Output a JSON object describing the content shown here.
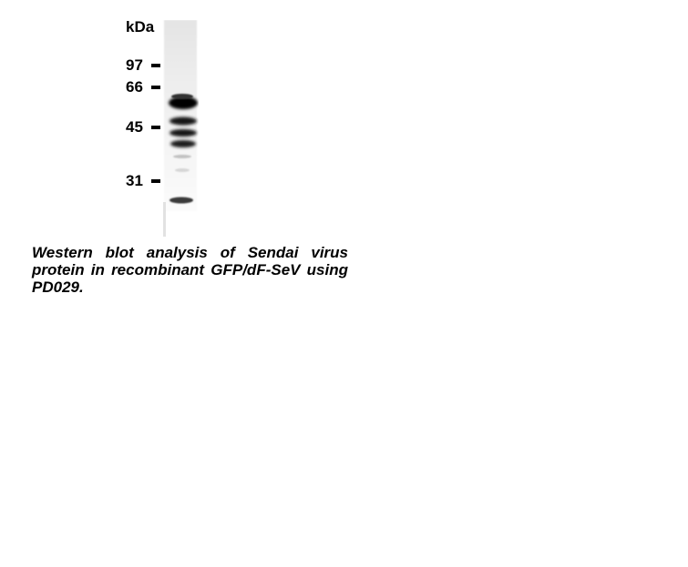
{
  "blot": {
    "unit_label": "kDa",
    "markers": [
      {
        "label": "97",
        "kda": 97
      },
      {
        "label": "66",
        "kda": 66
      },
      {
        "label": "45",
        "kda": 45
      },
      {
        "label": "31",
        "kda": 31
      }
    ]
  },
  "caption": {
    "text": "Western blot analysis of Sendai virus protein in recombinant GFP/dF-SeV using PD029."
  }
}
